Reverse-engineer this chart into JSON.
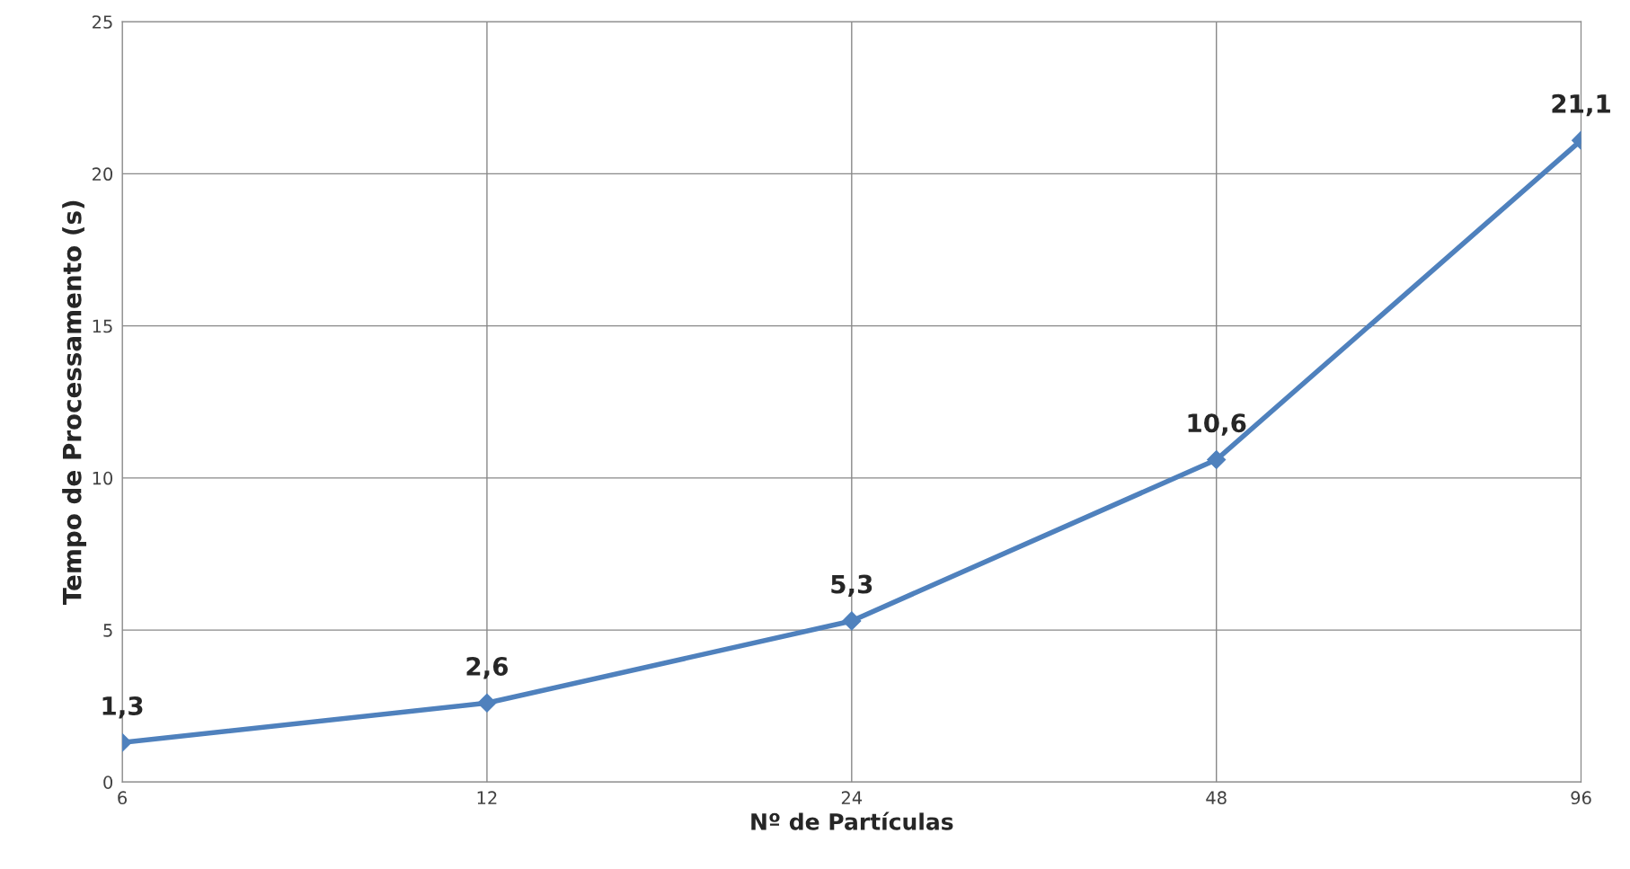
{
  "chart_data": {
    "type": "line",
    "xlabel": "Nº de Partículas",
    "ylabel": "Tempo de Processamento (s)",
    "categories": [
      "6",
      "12",
      "24",
      "48",
      "96"
    ],
    "series": [
      {
        "color": "#4f81bd",
        "values": [
          1.3,
          2.6,
          5.3,
          10.6,
          21.1
        ],
        "value_labels": [
          "1,3",
          "2,6",
          "5,3",
          "10,6",
          "21,1"
        ]
      }
    ],
    "ylim": [
      0,
      25
    ],
    "yticks": [
      0,
      5,
      10,
      15,
      20,
      25
    ],
    "grid": true,
    "marker": "diamond",
    "line_style": "solid"
  }
}
